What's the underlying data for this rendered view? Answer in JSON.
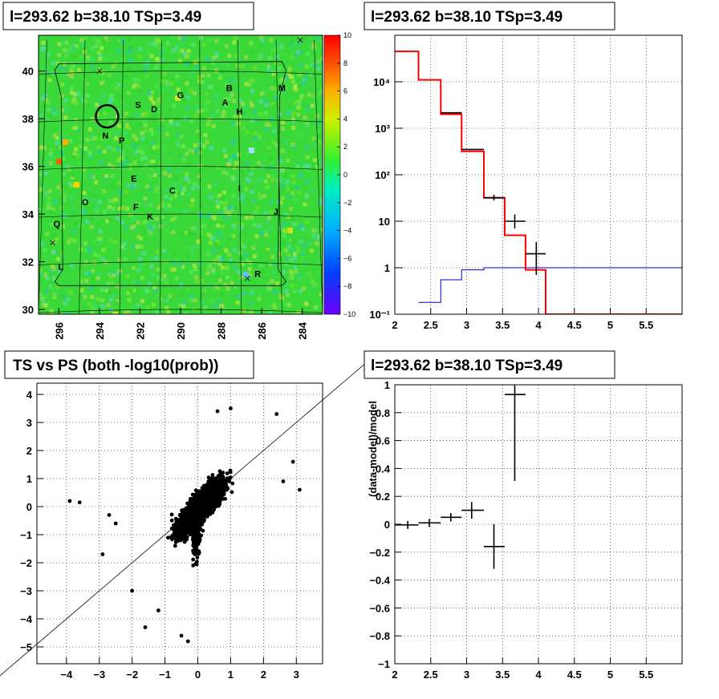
{
  "panels": {
    "map": {
      "title": "l=293.62 b=38.10 TSp=3.49",
      "x_ticks": [
        "296",
        "294",
        "292",
        "290",
        "288",
        "286",
        "284"
      ],
      "y_ticks": [
        "30",
        "32",
        "34",
        "36",
        "38",
        "40"
      ],
      "colorbar_ticks": [
        "10",
        "8",
        "6",
        "4",
        "2",
        "0",
        "−2",
        "−4",
        "−6",
        "−8",
        "−10"
      ],
      "source_labels": [
        "S",
        "D",
        "G",
        "B",
        "A",
        "H",
        "M",
        "N",
        "P",
        "E",
        "C",
        "I",
        "O",
        "F",
        "K",
        "J",
        "Q",
        "L",
        "R"
      ]
    },
    "spectrum": {
      "title": "l=293.62 b=38.10 TSp=3.49",
      "x_ticks": [
        "2",
        "2.5",
        "3",
        "3.5",
        "4",
        "4.5",
        "5",
        "5.5"
      ],
      "y_ticks": [
        "10⁻¹",
        "1",
        "10",
        "10²",
        "10³",
        "10⁴"
      ]
    },
    "scatter": {
      "title": "TS vs PS (both -log10(prob))",
      "x_ticks": [
        "−4",
        "−3",
        "−2",
        "−1",
        "0",
        "1",
        "2",
        "3"
      ],
      "y_ticks": [
        "4",
        "3",
        "2",
        "1",
        "0",
        "−1",
        "−2",
        "−3",
        "−4",
        "−5"
      ]
    },
    "residual": {
      "title": "l=293.62 b=38.10 TSp=3.49",
      "ylabel": "(data-model)/model",
      "x_ticks": [
        "2",
        "2.5",
        "3",
        "3.5",
        "4",
        "4.5",
        "5",
        "5.5"
      ],
      "y_ticks": [
        "1",
        "0.8",
        "0.6",
        "0.4",
        "0.2",
        "0",
        "−0.2",
        "−0.4",
        "−0.6",
        "−0.8",
        "−1"
      ]
    }
  },
  "colors": {
    "model": "#ff0000",
    "background_model": "#0000cc",
    "data": "#000000"
  },
  "chart_data": [
    {
      "type": "heatmap",
      "title": "l=293.62 b=38.10 TSp=3.49",
      "xlim": [
        297,
        283
      ],
      "ylim": [
        29.8,
        41.5
      ],
      "color_range": [
        -10,
        10
      ],
      "grid": true,
      "highlighted_circle": {
        "l": 293.62,
        "b": 38.1
      },
      "cross_markers": [
        {
          "l": 294,
          "b": 40
        },
        {
          "l": 296.3,
          "b": 32.8
        },
        {
          "l": 286.7,
          "b": 31.3
        },
        {
          "l": 284.1,
          "b": 41.3
        }
      ],
      "sources": [
        {
          "label": "S",
          "l": 292.1,
          "b": 38.6
        },
        {
          "label": "D",
          "l": 291.3,
          "b": 38.4
        },
        {
          "label": "G",
          "l": 290.0,
          "b": 39.0
        },
        {
          "label": "B",
          "l": 287.6,
          "b": 39.3
        },
        {
          "label": "A",
          "l": 287.8,
          "b": 38.7
        },
        {
          "label": "H",
          "l": 287.1,
          "b": 38.3
        },
        {
          "label": "M",
          "l": 285.0,
          "b": 39.3
        },
        {
          "label": "N",
          "l": 293.7,
          "b": 37.3
        },
        {
          "label": "P",
          "l": 292.9,
          "b": 37.1
        },
        {
          "label": "E",
          "l": 292.3,
          "b": 35.5
        },
        {
          "label": "C",
          "l": 290.4,
          "b": 35.0
        },
        {
          "label": "I",
          "l": 287.1,
          "b": 35.1
        },
        {
          "label": "O",
          "l": 294.7,
          "b": 34.5
        },
        {
          "label": "F",
          "l": 292.2,
          "b": 34.3
        },
        {
          "label": "K",
          "l": 291.5,
          "b": 33.9
        },
        {
          "label": "J",
          "l": 285.3,
          "b": 34.1
        },
        {
          "label": "Q",
          "l": 296.1,
          "b": 33.6
        },
        {
          "label": "L",
          "l": 295.9,
          "b": 31.8
        },
        {
          "label": "R",
          "l": 286.2,
          "b": 31.5
        }
      ]
    },
    {
      "type": "line",
      "title": "l=293.62 b=38.10 TSp=3.49",
      "xlim": [
        2,
        6.0
      ],
      "ylim": [
        0.1,
        100000
      ],
      "yscale": "log",
      "grid": true,
      "series": [
        {
          "style": "step",
          "bins": [
            [
              2.0,
              2.33,
              45000
            ],
            [
              2.33,
              2.64,
              11000
            ],
            [
              2.64,
              2.93,
              2000
            ],
            [
              2.93,
              3.24,
              320
            ],
            [
              3.24,
              3.53,
              32
            ],
            [
              3.53,
              3.82,
              5
            ],
            [
              3.82,
              4.1,
              0.9
            ],
            [
              4.1,
              4.4,
              0.1
            ],
            [
              4.4,
              6.0,
              0.1
            ]
          ],
          "color": "#ff0000"
        },
        {
          "style": "step",
          "bins": [
            [
              2.33,
              2.64,
              0.18
            ],
            [
              2.64,
              2.93,
              0.55
            ],
            [
              2.93,
              3.24,
              0.9
            ],
            [
              3.24,
              3.53,
              1.0
            ],
            [
              3.53,
              6.0,
              1.0
            ]
          ],
          "color": "#0000cc"
        },
        {
          "style": "points",
          "points": [
            [
              2.77,
              2150,
              2.64,
              2.93,
              2150,
              2150
            ],
            [
              3.07,
              350,
              2.93,
              3.24,
              350,
              350
            ],
            [
              3.38,
              32,
              3.24,
              3.53,
              28,
              37
            ],
            [
              3.67,
              10,
              3.53,
              3.82,
              7,
              14
            ],
            [
              3.97,
              2,
              3.82,
              4.1,
              0.7,
              3.6
            ]
          ],
          "color": "#000000"
        }
      ]
    },
    {
      "type": "scatter",
      "title": "TS vs PS (both -log10(prob))",
      "xlim": [
        -4.9,
        3.8
      ],
      "ylim": [
        -5.6,
        4.4
      ],
      "grid": true,
      "reference_line": {
        "slope": 1,
        "intercept": 0
      },
      "series": [
        {
          "points": [
            [
              -3.9,
              0.2
            ],
            [
              -3.6,
              0.15
            ],
            [
              -2.9,
              -1.7
            ],
            [
              3.1,
              0.6
            ],
            [
              2.9,
              1.6
            ],
            [
              -0.3,
              -4.8
            ],
            [
              -0.5,
              -4.6
            ],
            [
              -1.6,
              -4.3
            ],
            [
              2.4,
              3.3
            ],
            [
              0.6,
              3.4
            ],
            [
              1.0,
              3.5
            ],
            [
              -2.7,
              -0.3
            ],
            [
              -2.5,
              -0.6
            ],
            [
              2.6,
              0.9
            ],
            [
              -1.2,
              -3.7
            ],
            [
              -2.0,
              -3.0
            ]
          ]
        }
      ]
    },
    {
      "type": "scatter",
      "title": "l=293.62 b=38.10 TSp=3.49",
      "ylabel": "(data-model)/model",
      "xlim": [
        2,
        6.0
      ],
      "ylim": [
        -1,
        1
      ],
      "grid": true,
      "series": [
        {
          "points": [
            [
              2.18,
              -0.005,
              2.0,
              2.33,
              0.0,
              0.0
            ],
            [
              2.48,
              0.01,
              2.33,
              2.64,
              0.0,
              0.0
            ],
            [
              2.78,
              0.05,
              2.64,
              2.93,
              0.03,
              0.03
            ],
            [
              3.07,
              0.1,
              2.93,
              3.24,
              0.06,
              0.06
            ],
            [
              3.38,
              -0.16,
              3.24,
              3.53,
              0.16,
              0.16
            ],
            [
              3.67,
              0.93,
              3.53,
              3.82,
              0.62,
              0.62
            ]
          ]
        }
      ]
    }
  ]
}
